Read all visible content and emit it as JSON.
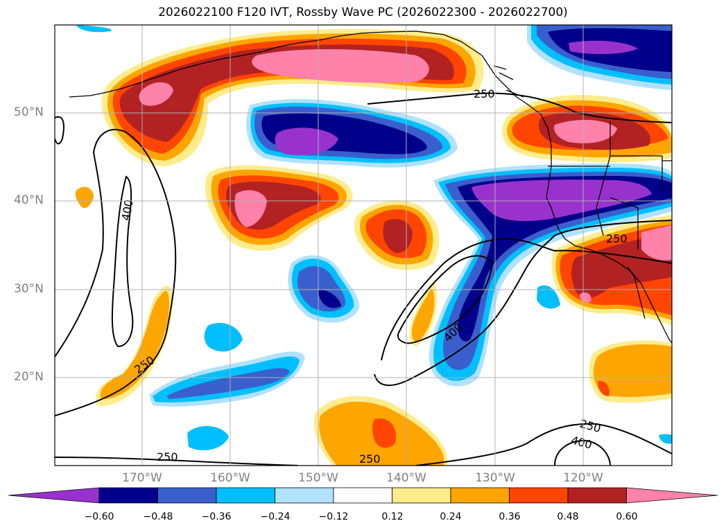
{
  "title": "2026022100 F120 IVT, Rossby Wave PC (2026022300 - 2026022700)",
  "lat_labels": [
    "50°N",
    "40°N",
    "30°N",
    "20°N"
  ],
  "lon_labels": [
    "170°W",
    "160°W",
    "150°W",
    "140°W",
    "130°W",
    "120°W"
  ],
  "contour_labels": [
    "400",
    "250",
    "250",
    "400",
    "250",
    "250",
    "250",
    "400",
    "250"
  ],
  "colorbar": {
    "tick_labels": [
      "−0.60",
      "−0.48",
      "−0.36",
      "−0.24",
      "−0.12",
      "0.12",
      "0.24",
      "0.36",
      "0.48",
      "0.60"
    ],
    "colors": [
      "#9932cc",
      "#00008b",
      "#3a5fcd",
      "#00bfff",
      "#b0e2ff",
      "#ffffff",
      "#ffec8b",
      "#ffa500",
      "#ff4500",
      "#b22222",
      "#ff82ab"
    ]
  }
}
